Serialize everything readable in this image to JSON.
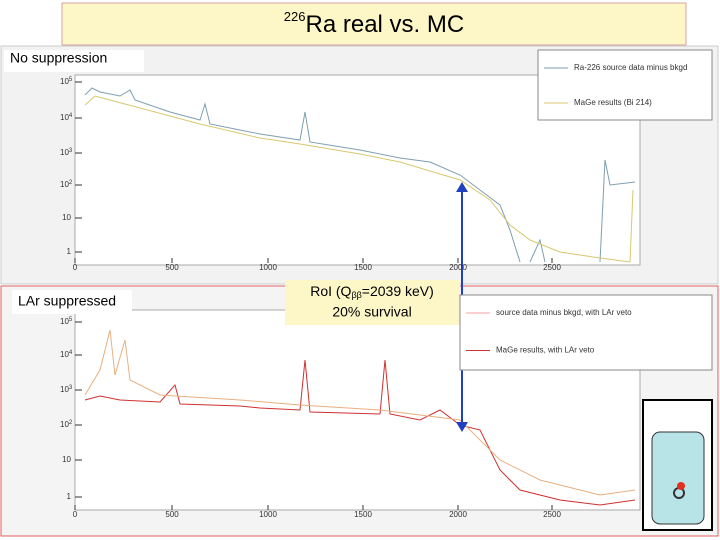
{
  "title": {
    "superscript": "226",
    "text": "Ra real vs. MC"
  },
  "panels": [
    {
      "label": "No suppression",
      "legend": [
        "Ra-226 source data minus bkgd",
        "MaGe results (Bi 214)"
      ],
      "y_ticks": [
        {
          "base": "10",
          "exp": "5"
        },
        {
          "base": "10",
          "exp": "4"
        },
        {
          "base": "10",
          "exp": "3"
        },
        {
          "base": "10",
          "exp": "2"
        },
        "10",
        "1"
      ],
      "x_ticks": [
        "0",
        "500",
        "1000",
        "1500",
        "2000",
        "2500"
      ]
    },
    {
      "label": "LAr suppressed",
      "legend": [
        "source data minus bkgd, with LAr veto",
        "MaGe results, with LAr veto"
      ],
      "y_ticks": [
        {
          "base": "10",
          "exp": "5"
        },
        {
          "base": "10",
          "exp": "4"
        },
        {
          "base": "10",
          "exp": "3"
        },
        {
          "base": "10",
          "exp": "2"
        },
        "10",
        "1"
      ],
      "x_ticks": [
        "0",
        "500",
        "1000",
        "1500",
        "2000",
        "2500"
      ]
    }
  ],
  "annotation": {
    "line1_prefix": "RoI (Q",
    "line1_sub": "ββ",
    "line1_suffix": "=2039 keV)",
    "line2": "20% survival"
  }
}
